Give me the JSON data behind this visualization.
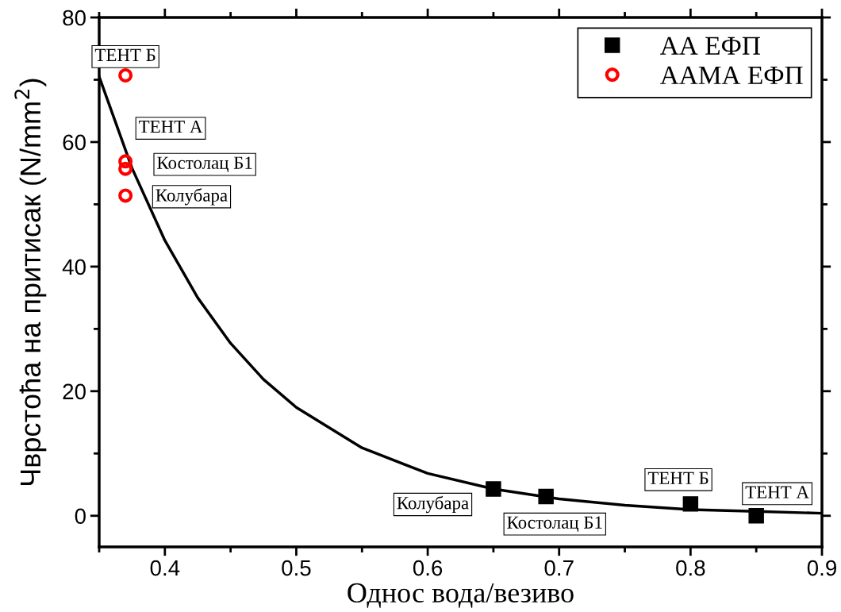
{
  "chart_data": {
    "type": "scatter",
    "xlabel": "Однос вода/везиво",
    "ylabel": "Чврстоћа на притисак (N/mm$^{2}$)",
    "xlim": [
      0.35,
      0.9
    ],
    "xticks": [
      0.4,
      0.5,
      0.6,
      0.7,
      0.8,
      0.9
    ],
    "ylim": [
      -5,
      80
    ],
    "yticks": [
      0,
      20,
      40,
      60,
      80
    ],
    "legend": "top right",
    "grid": false,
    "series": [
      {
        "name": "АА ЕФП",
        "marker": "square",
        "color": "#000000",
        "x": [
          0.65,
          0.69,
          0.8,
          0.85
        ],
        "values": [
          4.3,
          3.1,
          1.9,
          0.0
        ]
      },
      {
        "name": "ААМА ЕФП",
        "marker": "circle",
        "color": "#ff0000",
        "x": [
          0.37,
          0.37,
          0.37,
          0.37
        ],
        "values": [
          70.7,
          56.9,
          55.7,
          51.4
        ]
      },
      {
        "type": "line",
        "marker": "none",
        "color": "#000000",
        "x": [
          0.35,
          0.375,
          0.4,
          0.425,
          0.45,
          0.475,
          0.5,
          0.55,
          0.6,
          0.65,
          0.7,
          0.75,
          0.8,
          0.85,
          0.9
        ],
        "values": [
          70.5,
          55.8,
          44.2,
          35.0,
          27.7,
          21.9,
          17.4,
          10.9,
          6.8,
          4.3,
          2.7,
          1.7,
          1.0,
          0.7,
          0.4
        ]
      }
    ],
    "annotations": [
      {
        "text": "ТЕНТ Б",
        "x": 0.37,
        "y": 70.7
      },
      {
        "text": "ТЕНТ А",
        "x": 0.37,
        "y": 56.9
      },
      {
        "text": "Костолац Б1",
        "x": 0.37,
        "y": 55.7
      },
      {
        "text": "Колубара",
        "x": 0.37,
        "y": 51.4
      },
      {
        "text": "Колубара",
        "x": 0.65,
        "y": 4.3
      },
      {
        "text": "Костолац Б1",
        "x": 0.69,
        "y": 3.1
      },
      {
        "text": "ТЕНТ Б",
        "x": 0.8,
        "y": 1.9
      },
      {
        "text": "ТЕНТ А",
        "x": 0.85,
        "y": 0.0
      }
    ]
  }
}
